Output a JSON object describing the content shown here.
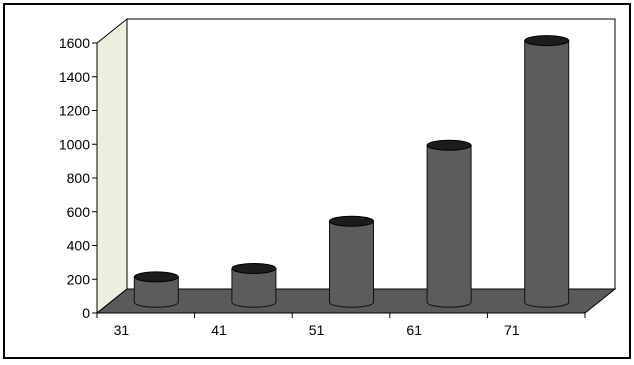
{
  "chart_data": {
    "type": "bar",
    "style": "3d-cylinder",
    "categories": [
      "31",
      "41",
      "51",
      "61",
      "71"
    ],
    "values": [
      150,
      200,
      480,
      930,
      1550
    ],
    "yticks": [
      0,
      200,
      400,
      600,
      800,
      1000,
      1200,
      1400,
      1600
    ],
    "ylim": [
      0,
      1600
    ],
    "grid": false,
    "legend": "none",
    "title": "",
    "xlabel": "",
    "ylabel": "",
    "colors": {
      "bar": "#5c5c5c",
      "bar_top": "#1c1c1c",
      "floor": "#5a5a5a",
      "back_wall": "#ffffff",
      "side_wall": "#eeeedd",
      "frame": "#000000"
    }
  }
}
